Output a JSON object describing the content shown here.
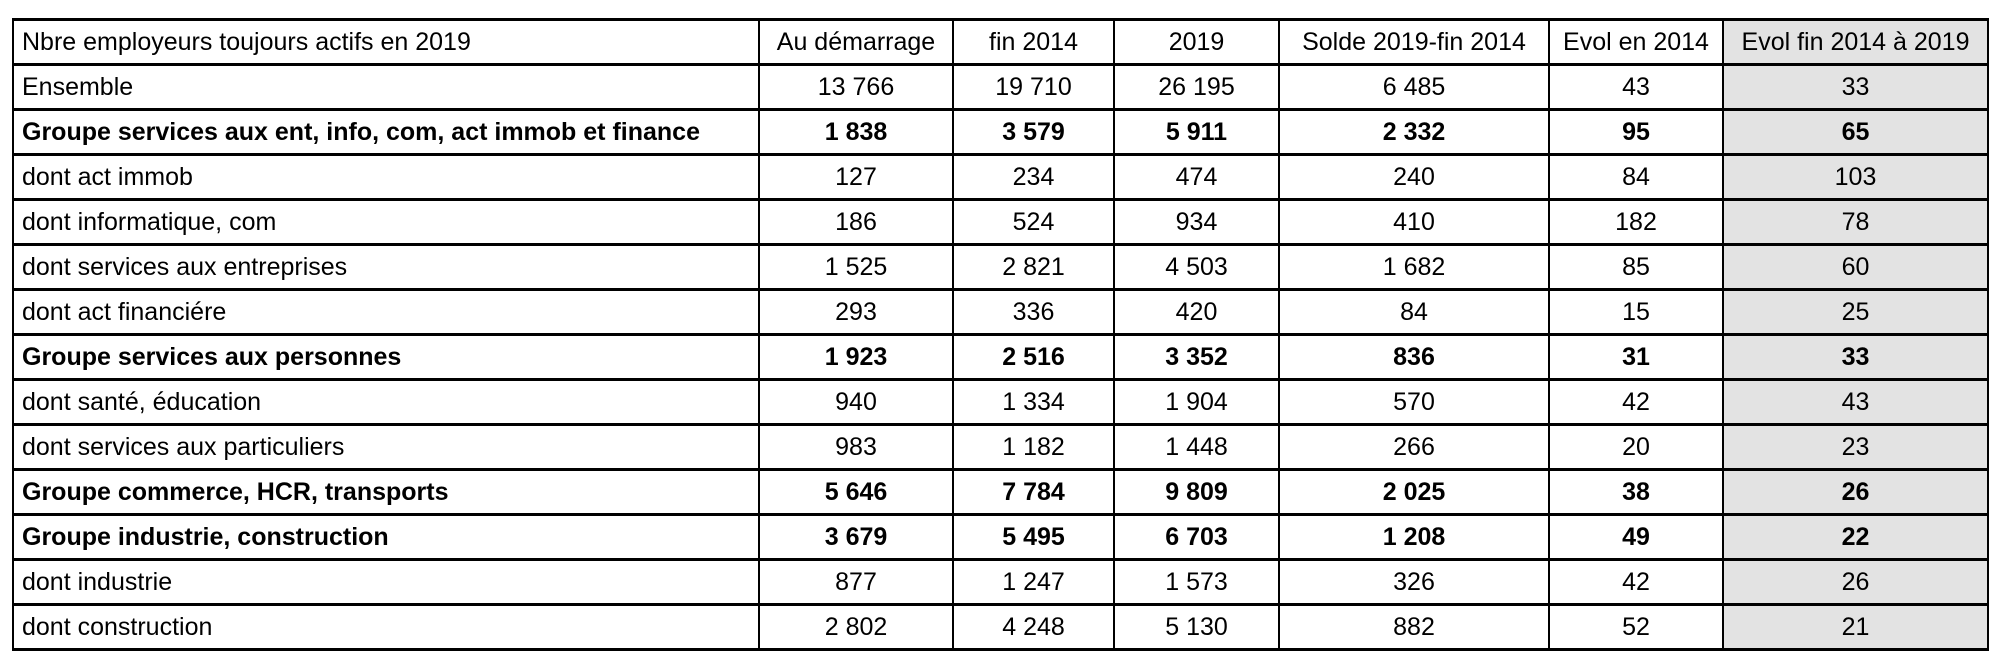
{
  "table": {
    "title_header": "Nbre employeurs toujours actifs en 2019",
    "columns": [
      "Au démarrage",
      "fin 2014",
      "2019",
      "Solde 2019-fin 2014",
      "Evol en 2014",
      "Evol fin 2014 à 2019"
    ],
    "rows": [
      {
        "label": "Ensemble",
        "bold": false,
        "values": [
          "13 766",
          "19 710",
          "26 195",
          "6 485",
          "43",
          "33"
        ]
      },
      {
        "label": "Groupe services aux ent, info, com, act immob et finance",
        "bold": true,
        "values": [
          "1 838",
          "3 579",
          "5 911",
          "2 332",
          "95",
          "65"
        ]
      },
      {
        "label": "dont act immob",
        "bold": false,
        "values": [
          "127",
          "234",
          "474",
          "240",
          "84",
          "103"
        ]
      },
      {
        "label": "dont informatique, com",
        "bold": false,
        "values": [
          "186",
          "524",
          "934",
          "410",
          "182",
          "78"
        ]
      },
      {
        "label": "dont services aux entreprises",
        "bold": false,
        "values": [
          "1 525",
          "2 821",
          "4 503",
          "1 682",
          "85",
          "60"
        ]
      },
      {
        "label": "dont act financiére",
        "bold": false,
        "values": [
          "293",
          "336",
          "420",
          "84",
          "15",
          "25"
        ]
      },
      {
        "label": "Groupe services aux personnes",
        "bold": true,
        "values": [
          "1 923",
          "2 516",
          "3 352",
          "836",
          "31",
          "33"
        ]
      },
      {
        "label": "dont santé, éducation",
        "bold": false,
        "values": [
          "940",
          "1 334",
          "1 904",
          "570",
          "42",
          "43"
        ]
      },
      {
        "label": "dont services aux particuliers",
        "bold": false,
        "values": [
          "983",
          "1 182",
          "1 448",
          "266",
          "20",
          "23"
        ]
      },
      {
        "label": "Groupe commerce, HCR, transports",
        "bold": true,
        "values": [
          "5 646",
          "7 784",
          "9 809",
          "2 025",
          "38",
          "26"
        ]
      },
      {
        "label": "Groupe industrie, construction",
        "bold": true,
        "values": [
          "3 679",
          "5 495",
          "6 703",
          "1 208",
          "49",
          "22"
        ]
      },
      {
        "label": "dont industrie",
        "bold": false,
        "values": [
          "877",
          "1 247",
          "1 573",
          "326",
          "42",
          "26"
        ]
      },
      {
        "label": "dont construction",
        "bold": false,
        "values": [
          "2 802",
          "4 248",
          "5 130",
          "882",
          "52",
          "21"
        ]
      }
    ],
    "colors": {
      "highlight_column_bg": "#e3e3e3",
      "border": "#000000",
      "text": "#000000"
    }
  }
}
